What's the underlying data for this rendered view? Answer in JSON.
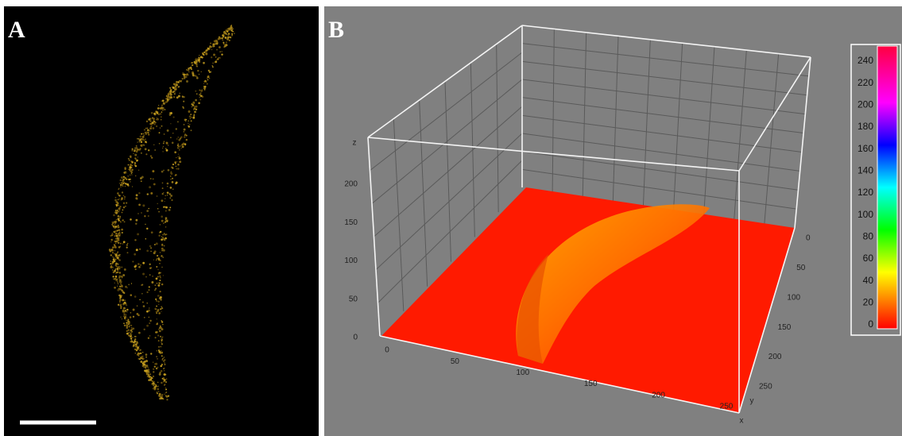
{
  "panels": {
    "a": {
      "label": "A"
    },
    "b": {
      "label": "B",
      "z_axis": {
        "label": "z",
        "ticks": [
          0,
          50,
          100,
          150,
          200
        ]
      },
      "x_axis": {
        "label": "x",
        "ticks": [
          0,
          50,
          100,
          150,
          200,
          250
        ]
      },
      "y_axis": {
        "label": "y",
        "ticks": [
          0,
          50,
          100,
          150,
          200,
          250
        ]
      },
      "colorbar": {
        "ticks": [
          0,
          20,
          40,
          60,
          80,
          100,
          120,
          140,
          160,
          180,
          200,
          220,
          240
        ]
      }
    }
  }
}
